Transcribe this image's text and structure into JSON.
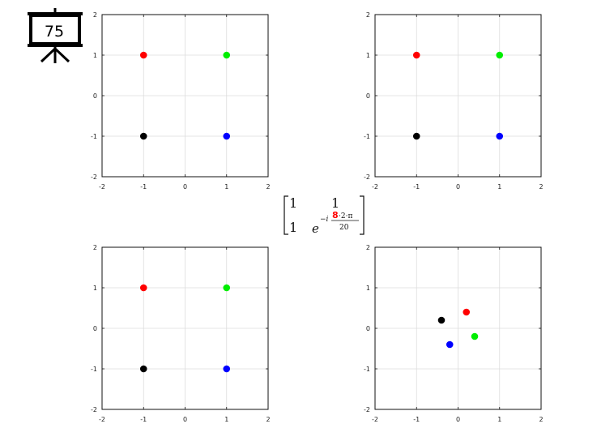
{
  "slide_badge": {
    "number": "75"
  },
  "matrix": {
    "r1c1": "1",
    "r1c2": "1",
    "r2c1": "1",
    "exp_base": "e",
    "exp_sign": "−i",
    "exp_highlight": "8",
    "exp_numerator_rest": "·2·π",
    "exp_denominator": "20",
    "highlight_color": "#ff0000"
  },
  "chart_data": [
    {
      "type": "scatter",
      "xlim": [
        -2,
        2
      ],
      "ylim": [
        -2,
        2
      ],
      "xticks": [
        -2,
        -1,
        0,
        1,
        2
      ],
      "yticks": [
        -2,
        -1,
        0,
        1,
        2
      ],
      "grid": true,
      "points": [
        {
          "x": -1,
          "y": 1,
          "color": "#ff0000"
        },
        {
          "x": 1,
          "y": 1,
          "color": "#00ee00"
        },
        {
          "x": -1,
          "y": -1,
          "color": "#000000"
        },
        {
          "x": 1,
          "y": -1,
          "color": "#0000ff"
        }
      ]
    },
    {
      "type": "scatter",
      "xlim": [
        -2,
        2
      ],
      "ylim": [
        -2,
        2
      ],
      "xticks": [
        -2,
        -1,
        0,
        1,
        2
      ],
      "yticks": [
        -2,
        -1,
        0,
        1,
        2
      ],
      "grid": true,
      "points": [
        {
          "x": -1,
          "y": 1,
          "color": "#ff0000"
        },
        {
          "x": 1,
          "y": 1,
          "color": "#00ee00"
        },
        {
          "x": -1,
          "y": -1,
          "color": "#000000"
        },
        {
          "x": 1,
          "y": -1,
          "color": "#0000ff"
        }
      ]
    },
    {
      "type": "scatter",
      "xlim": [
        -2,
        2
      ],
      "ylim": [
        -2,
        2
      ],
      "xticks": [
        -2,
        -1,
        0,
        1,
        2
      ],
      "yticks": [
        -2,
        -1,
        0,
        1,
        2
      ],
      "grid": true,
      "points": [
        {
          "x": -1,
          "y": 1,
          "color": "#ff0000"
        },
        {
          "x": 1,
          "y": 1,
          "color": "#00ee00"
        },
        {
          "x": -1,
          "y": -1,
          "color": "#000000"
        },
        {
          "x": 1,
          "y": -1,
          "color": "#0000ff"
        }
      ]
    },
    {
      "type": "scatter",
      "xlim": [
        -2,
        2
      ],
      "ylim": [
        -2,
        2
      ],
      "xticks": [
        -2,
        -1,
        0,
        1,
        2
      ],
      "yticks": [
        -2,
        -1,
        0,
        1,
        2
      ],
      "grid": true,
      "points": [
        {
          "x": 0.2,
          "y": 0.4,
          "color": "#ff0000"
        },
        {
          "x": 0.4,
          "y": -0.2,
          "color": "#00ee00"
        },
        {
          "x": -0.4,
          "y": 0.2,
          "color": "#000000"
        },
        {
          "x": -0.2,
          "y": -0.4,
          "color": "#0000ff"
        }
      ]
    }
  ]
}
